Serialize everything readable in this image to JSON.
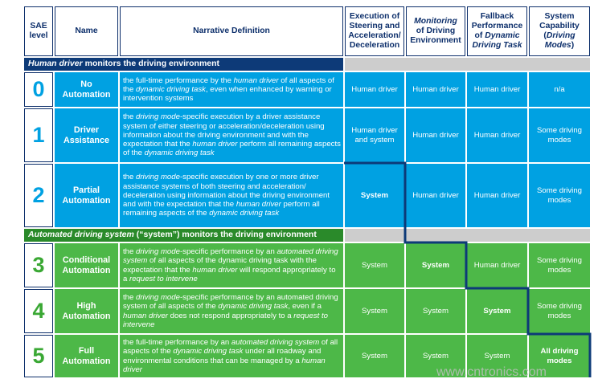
{
  "header": {
    "level": "SAE level",
    "name": "Name",
    "definition": "Narrative Definition",
    "execution": "Execution of Steering and Acceleration/ Deceleration",
    "monitoring": [
      {
        "italic": "Monitoring"
      },
      " of Driving Environment"
    ],
    "fallback": [
      "Fallback Performance of ",
      {
        "italic": "Dynamic Driving Task"
      }
    ],
    "capability": [
      "System Capability (",
      {
        "italic": "Driving Modes"
      },
      ")"
    ]
  },
  "sections": [
    [
      {
        "italic": "Human driver"
      },
      " monitors the driving environment"
    ],
    [
      {
        "italic": "Automated driving system"
      },
      " (“system”) monitors the driving environment"
    ]
  ],
  "rows": [
    {
      "level": 0,
      "name": "No Automation",
      "definition": [
        "the full-time performance by the ",
        {
          "italic": "human driver"
        },
        " of all aspects of the ",
        {
          "italic": "dynamic driving task"
        },
        ", even when enhanced by warning or intervention systems"
      ],
      "execution": "Human driver",
      "monitoring": "Human driver",
      "fallback": "Human driver",
      "capability": "n/a"
    },
    {
      "level": 1,
      "name": "Driver Assistance",
      "definition": [
        "the ",
        {
          "italic": "driving mode"
        },
        "-specific execution by a driver assistance system of either steering or acceleration/deceleration using information about the driving environment and with the expectation that the ",
        {
          "italic": "human driver"
        },
        " perform all remaining aspects of the ",
        {
          "italic": "dynamic driving task"
        }
      ],
      "execution": "Human driver and system",
      "monitoring": "Human driver",
      "fallback": "Human driver",
      "capability": "Some driving modes"
    },
    {
      "level": 2,
      "name": "Partial Automation",
      "definition": [
        "the ",
        {
          "italic": "driving mode"
        },
        "-specific execution by one or more driver assistance systems of both steering and acceleration/ deceleration using information about the driving environment and with the expectation that the ",
        {
          "italic": "human driver"
        },
        " perform all remaining aspects of the ",
        {
          "italic": "dynamic driving task"
        }
      ],
      "execution": "System",
      "monitoring": "Human driver",
      "fallback": "Human driver",
      "capability": "Some driving modes"
    },
    {
      "level": 3,
      "name": "Conditional Automation",
      "definition": [
        "the ",
        {
          "italic": "driving mode"
        },
        "-specific performance by an ",
        {
          "italic": "automated driving system"
        },
        " of all aspects of the dynamic driving task with the expectation that the ",
        {
          "italic": "human driver"
        },
        " will respond appropriately to a ",
        {
          "italic": "request to intervene"
        }
      ],
      "execution": "System",
      "monitoring": "System",
      "fallback": "Human driver",
      "capability": "Some driving modes"
    },
    {
      "level": 4,
      "name": "High Automation",
      "definition": [
        "the ",
        {
          "italic": "driving mode"
        },
        "-specific performance by an automated driving system of all aspects of the ",
        {
          "italic": "dynamic driving task"
        },
        ", even if a ",
        {
          "italic": "human driver"
        },
        " does not respond appropriately to a ",
        {
          "italic": "request to intervene"
        }
      ],
      "execution": "System",
      "monitoring": "System",
      "fallback": "System",
      "capability": "Some driving modes"
    },
    {
      "level": 5,
      "name": "Full Automation",
      "definition": [
        "the full-time performance by an ",
        {
          "italic": "automated driving system"
        },
        " of all aspects of the ",
        {
          "italic": "dynamic driving task"
        },
        " under all roadway and environmental conditions that can be managed by a ",
        {
          "italic": "human driver"
        }
      ],
      "execution": "System",
      "monitoring": "System",
      "fallback": "System",
      "capability": "All driving modes"
    }
  ],
  "watermark": "www.cntronics.com"
}
